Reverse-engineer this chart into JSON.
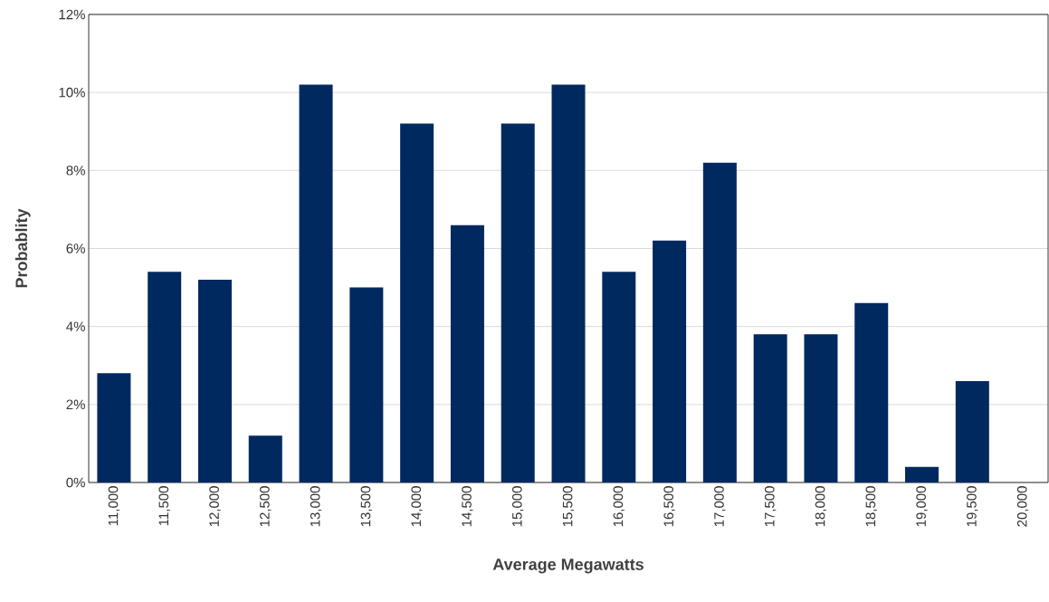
{
  "chart_data": {
    "type": "bar",
    "xlabel": "Average Megawatts",
    "ylabel": "Probablity",
    "categories": [
      "11,000",
      "11,500",
      "12,000",
      "12,500",
      "13,000",
      "13,500",
      "14,000",
      "14,500",
      "15,000",
      "15,500",
      "16,000",
      "16,500",
      "17,000",
      "17,500",
      "18,000",
      "18,500",
      "19,000",
      "19,500",
      "20,000"
    ],
    "values": [
      2.8,
      5.4,
      5.2,
      1.2,
      10.2,
      5.0,
      9.2,
      6.6,
      9.2,
      10.2,
      5.4,
      6.2,
      8.2,
      3.8,
      3.8,
      4.6,
      0.4,
      2.6,
      0
    ],
    "color": "#002960",
    "ylim": [
      0,
      12
    ],
    "yticks": [
      {
        "value": 0,
        "label": "0%"
      },
      {
        "value": 2,
        "label": "2%"
      },
      {
        "value": 4,
        "label": "4%"
      },
      {
        "value": 6,
        "label": "6%"
      },
      {
        "value": 8,
        "label": "8%"
      },
      {
        "value": 10,
        "label": "10%"
      },
      {
        "value": 12,
        "label": "12%"
      }
    ],
    "grid": "y"
  }
}
